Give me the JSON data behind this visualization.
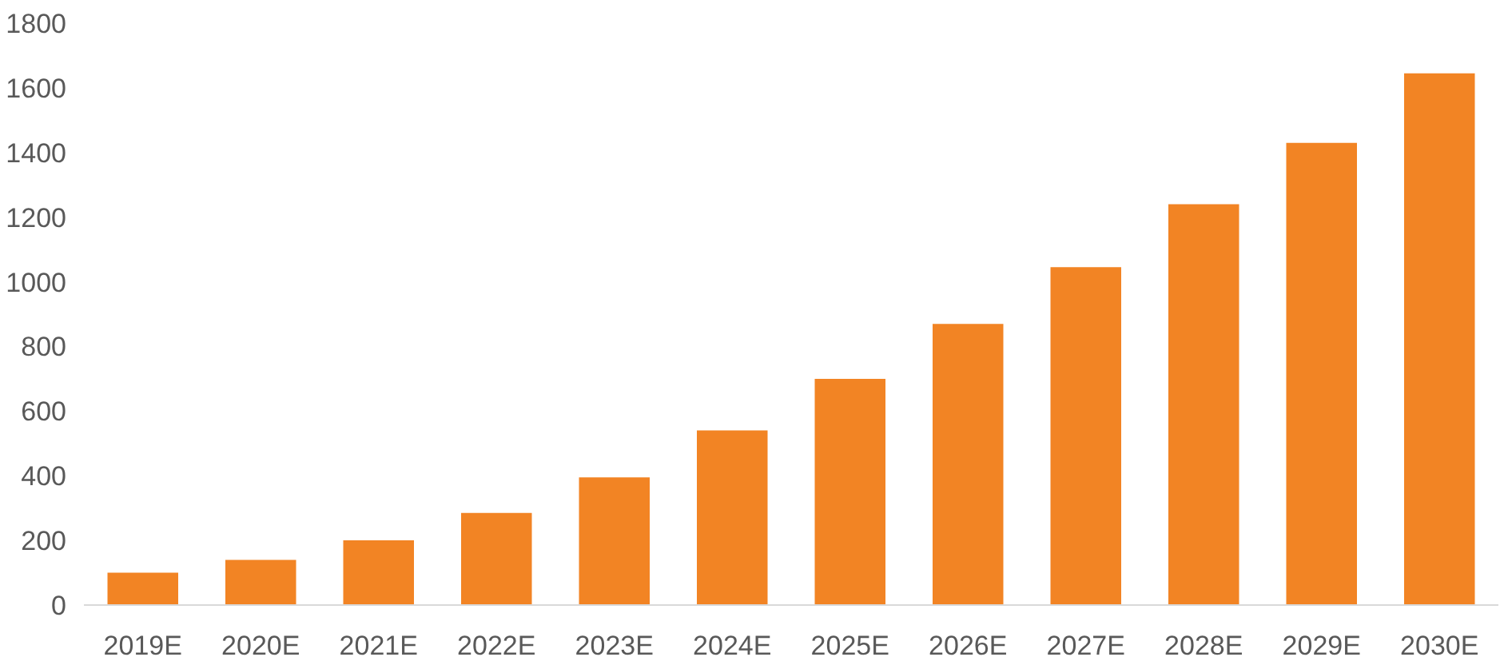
{
  "chart_data": {
    "type": "bar",
    "categories": [
      "2019E",
      "2020E",
      "2021E",
      "2022E",
      "2023E",
      "2024E",
      "2025E",
      "2026E",
      "2027E",
      "2028E",
      "2029E",
      "2030E"
    ],
    "values": [
      100,
      140,
      200,
      285,
      395,
      540,
      700,
      870,
      1045,
      1240,
      1430,
      1645
    ],
    "color": "#f28424",
    "ylim": [
      0,
      1800
    ],
    "yticks": [
      0,
      200,
      400,
      600,
      800,
      1000,
      1200,
      1400,
      1600,
      1800
    ],
    "grid": false
  }
}
